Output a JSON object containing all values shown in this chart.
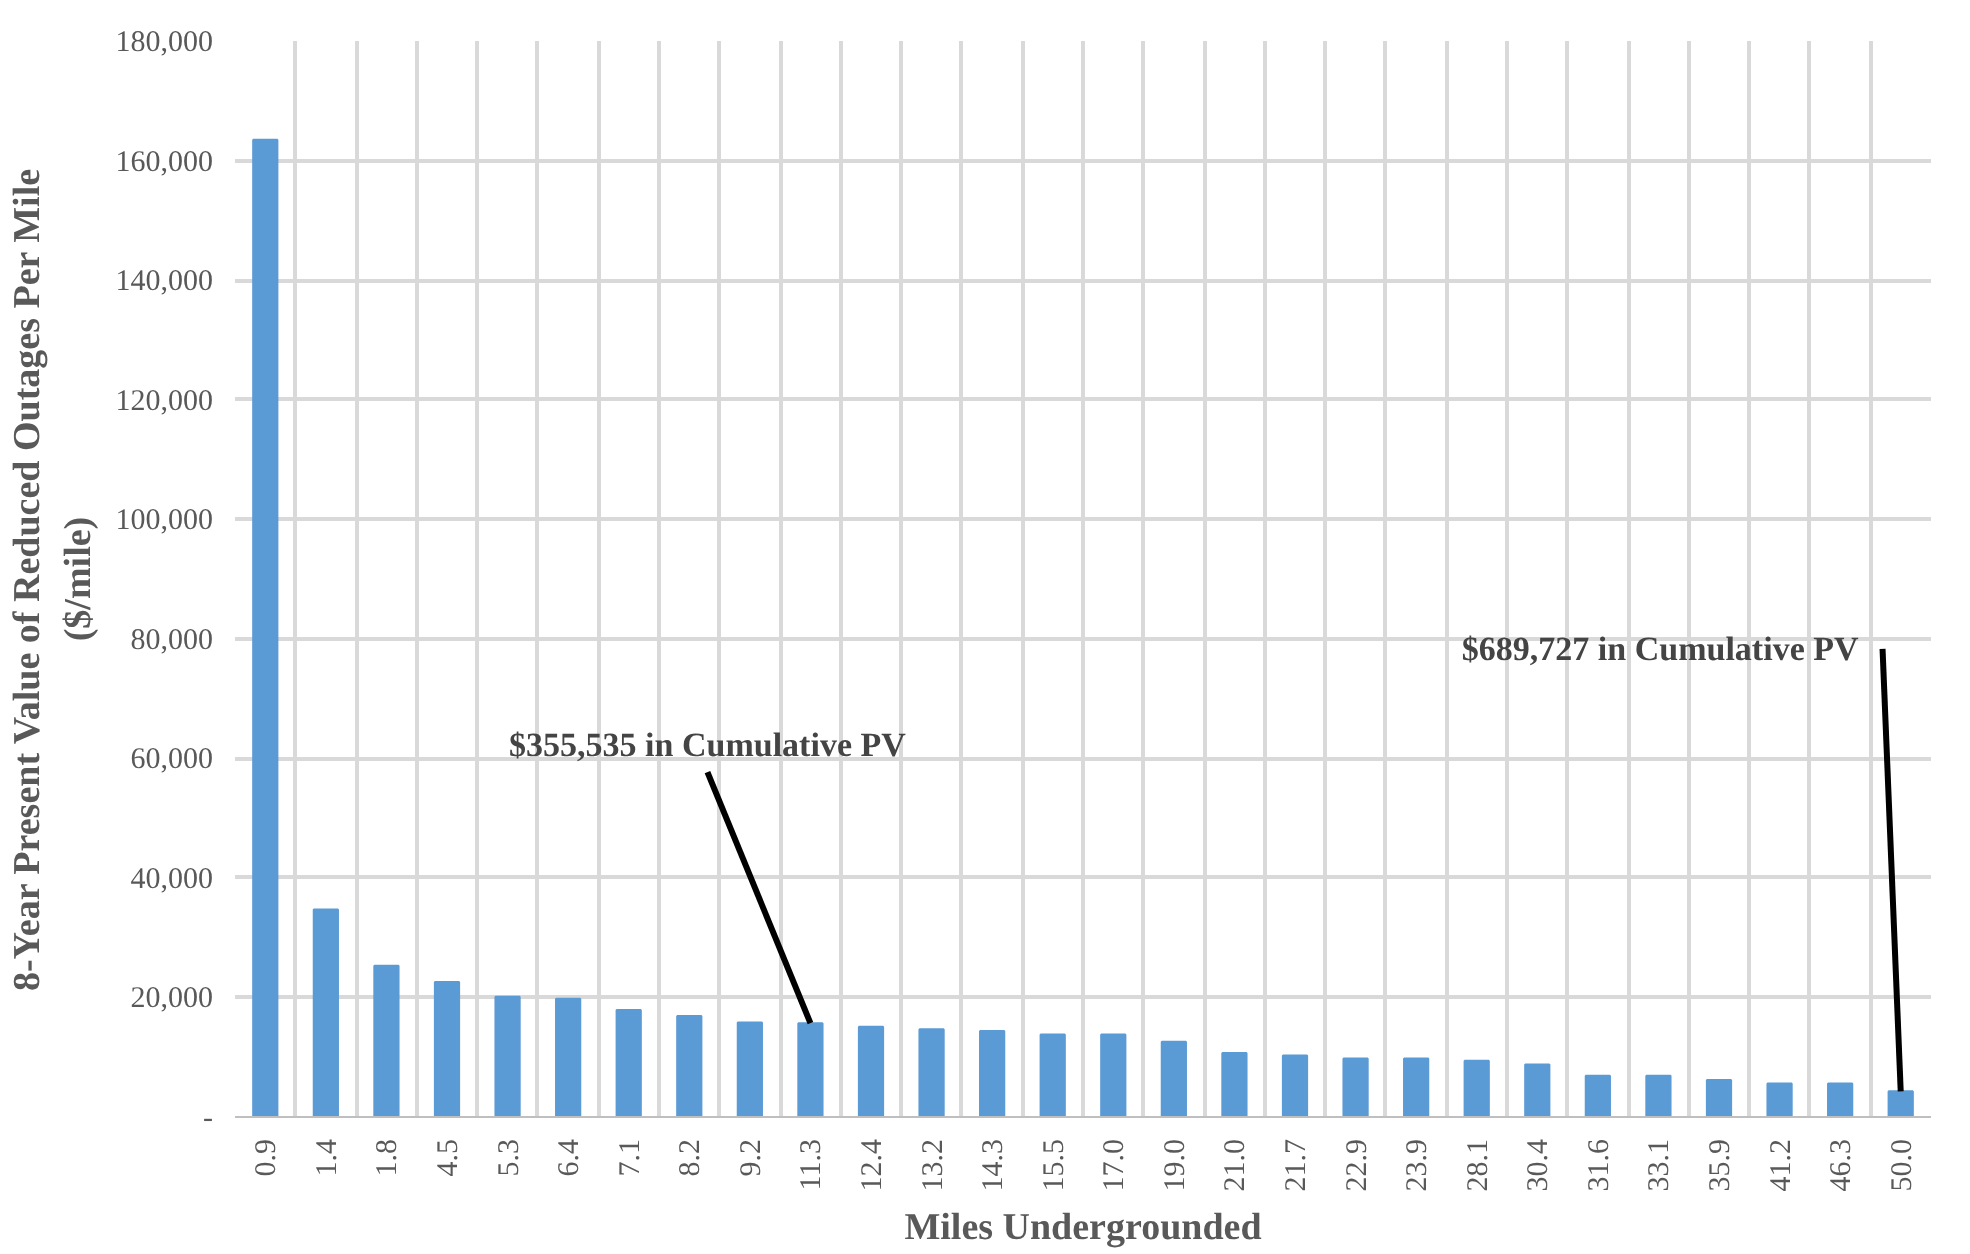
{
  "chart_data": {
    "type": "bar",
    "xlabel": "Miles Undergrounded",
    "ylabel": "8-Year Present Value of Reduced Outages Per Mile\n($/mile)",
    "categories": [
      "0.9",
      "1.4",
      "1.8",
      "4.5",
      "5.3",
      "6.4",
      "7.1",
      "8.2",
      "9.2",
      "11.3",
      "12.4",
      "13.2",
      "14.3",
      "15.5",
      "17.0",
      "19.0",
      "21.0",
      "21.7",
      "22.9",
      "23.9",
      "28.1",
      "30.4",
      "31.6",
      "33.1",
      "35.9",
      "41.2",
      "46.3",
      "50.0"
    ],
    "values": [
      163500,
      34700,
      25300,
      22600,
      20100,
      19800,
      17900,
      16900,
      15800,
      15700,
      15100,
      14700,
      14400,
      13800,
      13800,
      12600,
      10700,
      10300,
      9800,
      9800,
      9400,
      8800,
      6900,
      6900,
      6200,
      5600,
      5600,
      4300
    ],
    "color": "#5b9bd5",
    "ylim": [
      0,
      180000
    ],
    "yticks": [
      {
        "value": 0,
        "label": "-"
      },
      {
        "value": 20000,
        "label": "20,000"
      },
      {
        "value": 40000,
        "label": "40,000"
      },
      {
        "value": 60000,
        "label": "60,000"
      },
      {
        "value": 80000,
        "label": "80,000"
      },
      {
        "value": 100000,
        "label": "100,000"
      },
      {
        "value": 120000,
        "label": "120,000"
      },
      {
        "value": 140000,
        "label": "140,000"
      },
      {
        "value": 160000,
        "label": "160,000"
      },
      {
        "value": 180000,
        "label": "180,000"
      }
    ],
    "grid": true,
    "annotations": [
      {
        "text": "$355,535 in Cumulative PV",
        "x": "11.3",
        "y": 15700
      },
      {
        "text": "$689,727 in Cumulative PV",
        "x": "50.0",
        "y": 4300
      }
    ]
  }
}
